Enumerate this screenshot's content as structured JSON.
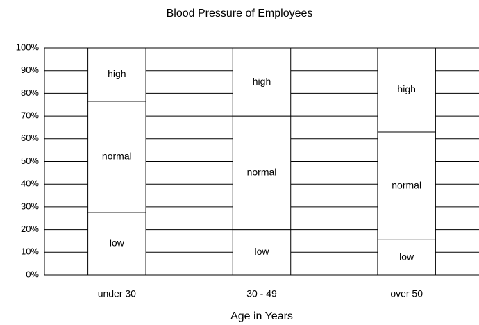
{
  "chart_data": {
    "type": "stacked_bar",
    "title": "Blood Pressure of Employees",
    "x_label": "Age in Years",
    "categories": [
      "under 30",
      "30 - 49",
      "over 50"
    ],
    "series": [
      {
        "name": "low",
        "color": "#ffffff",
        "values": [
          27.5,
          20,
          15.5
        ]
      },
      {
        "name": "normal",
        "color": "#ffffff",
        "values": [
          49,
          50,
          47.5
        ]
      },
      {
        "name": "high",
        "color": "#ffffff",
        "values": [
          23.5,
          30,
          37
        ]
      }
    ],
    "ylim": [
      0,
      100
    ],
    "yticks": [
      {
        "value": 0,
        "label": "0%"
      },
      {
        "value": 10,
        "label": "10%"
      },
      {
        "value": 20,
        "label": "20%"
      },
      {
        "value": 30,
        "label": "30%"
      },
      {
        "value": 40,
        "label": "40%"
      },
      {
        "value": 50,
        "label": "50%"
      },
      {
        "value": 60,
        "label": "60%"
      },
      {
        "value": 70,
        "label": "70%"
      },
      {
        "value": 80,
        "label": "80%"
      },
      {
        "value": 90,
        "label": "90%"
      },
      {
        "value": 100,
        "label": "100%"
      }
    ],
    "grid": true
  }
}
